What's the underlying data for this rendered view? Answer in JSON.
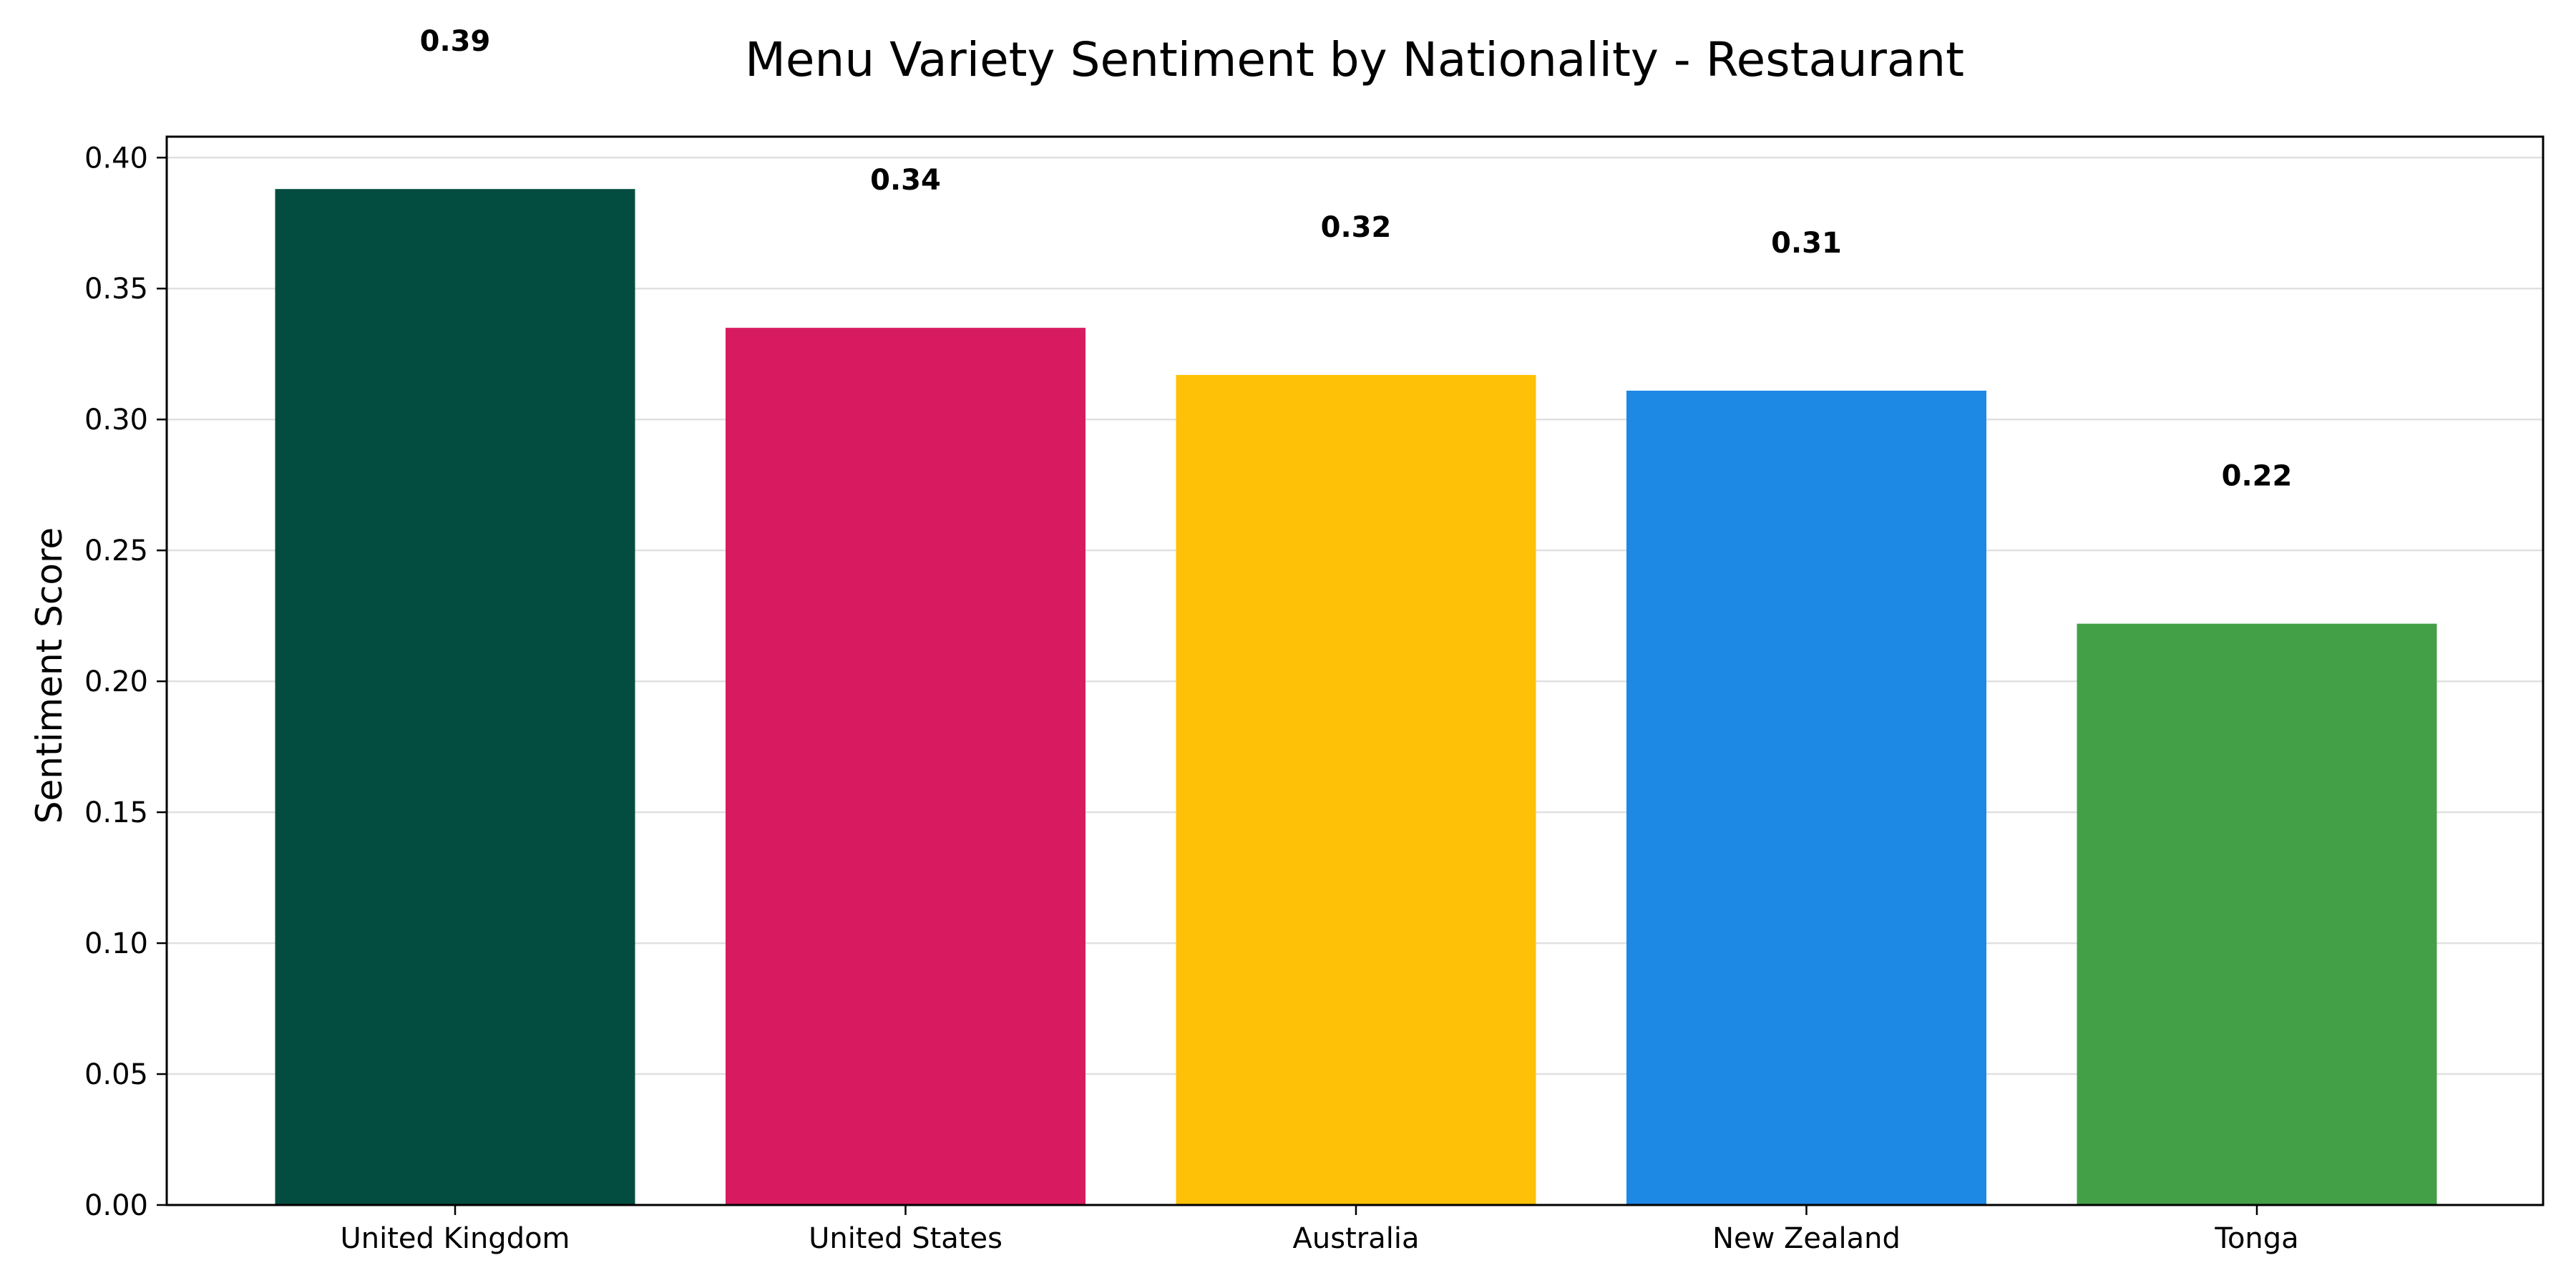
{
  "chart_data": {
    "type": "bar",
    "title": "Menu Variety Sentiment by Nationality - Restaurant",
    "xlabel": "",
    "ylabel": "Sentiment Score",
    "categories": [
      "United Kingdom",
      "United States",
      "Australia",
      "New Zealand",
      "Tonga"
    ],
    "values": [
      0.388,
      0.335,
      0.317,
      0.311,
      0.222
    ],
    "data_labels": [
      "0.39",
      "0.34",
      "0.32",
      "0.31",
      "0.22"
    ],
    "colors": [
      "#024D40",
      "#D81B60",
      "#FFC107",
      "#1E88E5",
      "#43A047"
    ],
    "ylim": [
      0,
      0.408
    ],
    "yticks": [
      0.0,
      0.05,
      0.1,
      0.15,
      0.2,
      0.25,
      0.3,
      0.35,
      0.4
    ],
    "ytick_labels": [
      "0.00",
      "0.05",
      "0.10",
      "0.15",
      "0.20",
      "0.25",
      "0.30",
      "0.35",
      "0.40"
    ],
    "grid": "y",
    "legend": "none"
  }
}
